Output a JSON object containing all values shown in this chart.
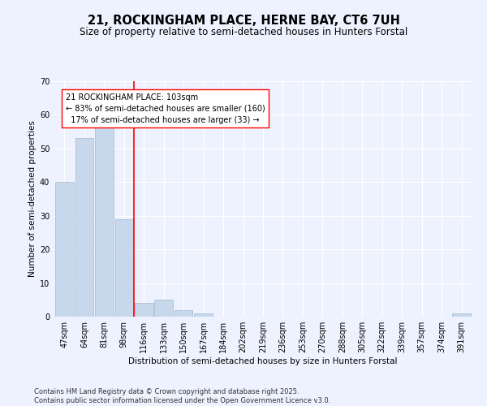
{
  "title": "21, ROCKINGHAM PLACE, HERNE BAY, CT6 7UH",
  "subtitle": "Size of property relative to semi-detached houses in Hunters Forstal",
  "xlabel": "Distribution of semi-detached houses by size in Hunters Forstal",
  "ylabel": "Number of semi-detached properties",
  "categories": [
    "47sqm",
    "64sqm",
    "81sqm",
    "98sqm",
    "116sqm",
    "133sqm",
    "150sqm",
    "167sqm",
    "184sqm",
    "202sqm",
    "219sqm",
    "236sqm",
    "253sqm",
    "270sqm",
    "288sqm",
    "305sqm",
    "322sqm",
    "339sqm",
    "357sqm",
    "374sqm",
    "391sqm"
  ],
  "values": [
    40,
    53,
    57,
    29,
    4,
    5,
    2,
    1,
    0,
    0,
    0,
    0,
    0,
    0,
    0,
    0,
    0,
    0,
    0,
    0,
    1
  ],
  "bar_color": "#c8d8ec",
  "bar_edge_color": "#a0b8cc",
  "redline_x": 3.5,
  "annotation_line1": "21 ROCKINGHAM PLACE: 103sqm",
  "annotation_line2": "← 83% of semi-detached houses are smaller (160)",
  "annotation_line3": "  17% of semi-detached houses are larger (33) →",
  "ylim": [
    0,
    70
  ],
  "yticks": [
    0,
    10,
    20,
    30,
    40,
    50,
    60,
    70
  ],
  "footer": "Contains HM Land Registry data © Crown copyright and database right 2025.\nContains public sector information licensed under the Open Government Licence v3.0.",
  "background_color": "#eef2ff",
  "grid_color": "#ffffff",
  "title_fontsize": 10.5,
  "subtitle_fontsize": 8.5,
  "axis_label_fontsize": 7.5,
  "tick_fontsize": 7,
  "annotation_fontsize": 7,
  "footer_fontsize": 6
}
